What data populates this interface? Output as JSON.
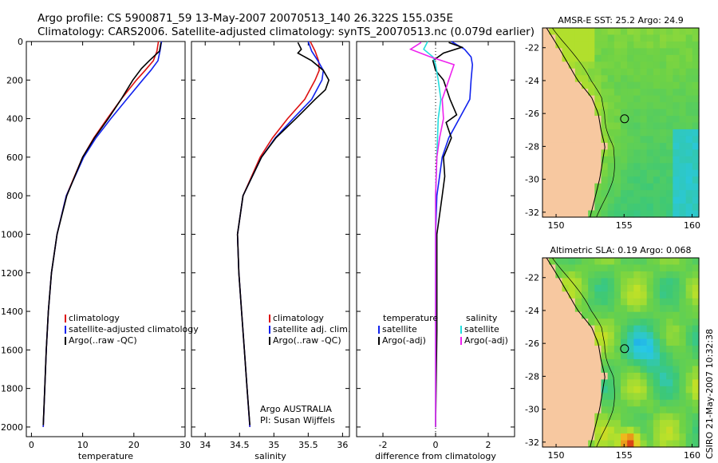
{
  "header": {
    "line1": "Argo profile: CS 5900871_59 13-May-2007 20070513_140 26.322S 155.035E",
    "line2": "Climatology: CARS2006. Satellite-adjusted climatology: synTS_20070513.nc (0.079d earlier)"
  },
  "credit": {
    "vertical": "CSIRO 21-May-2007 10:32:38",
    "argo_line1": "Argo AUSTRALIA",
    "argo_line2": "PI: Susan Wijffels"
  },
  "colors": {
    "climatology": "#dd1111",
    "satellite": "#1122ee",
    "argo": "#000000",
    "sal_satellite": "#22dddd",
    "sal_argo": "#ee22ee",
    "land": "#f7c8a0"
  },
  "chart_data": [
    {
      "type": "line",
      "xlabel": "temperature",
      "ylabel": "",
      "xlim": [
        -1,
        30
      ],
      "ylim": [
        2050,
        0
      ],
      "x_ticks": [
        0,
        10,
        20,
        30
      ],
      "y_ticks": [
        0,
        200,
        400,
        600,
        800,
        1000,
        1200,
        1400,
        1600,
        1800,
        2000
      ],
      "legend": [
        "climatology",
        "satellite-adjusted climatology",
        "Argo(..raw -QC)"
      ],
      "series": [
        {
          "name": "climatology",
          "color": "#dd1111",
          "depth": [
            0,
            50,
            100,
            150,
            200,
            300,
            400,
            500,
            600,
            800,
            1000,
            1200,
            1400,
            1600,
            1800,
            2000
          ],
          "values": [
            24.8,
            24.5,
            23.8,
            22.2,
            20.5,
            17.5,
            14.8,
            12.2,
            10.0,
            6.8,
            5.0,
            3.9,
            3.3,
            2.9,
            2.6,
            2.3
          ]
        },
        {
          "name": "satellite-adjusted climatology",
          "color": "#1122ee",
          "depth": [
            0,
            50,
            100,
            150,
            200,
            300,
            400,
            500,
            600,
            800,
            1000,
            1200,
            1400,
            1600,
            1800,
            2000
          ],
          "values": [
            25.4,
            25.1,
            24.7,
            23.3,
            21.7,
            18.6,
            15.5,
            12.6,
            10.2,
            6.8,
            5.0,
            3.9,
            3.3,
            2.9,
            2.6,
            2.3
          ]
        },
        {
          "name": "Argo(..raw -QC)",
          "color": "#000000",
          "depth": [
            5,
            50,
            100,
            140,
            200,
            300,
            400,
            500,
            600,
            800,
            1000,
            1200,
            1400,
            1600,
            1800,
            1990
          ],
          "values": [
            25.3,
            25.0,
            23.0,
            21.5,
            19.8,
            17.5,
            15.0,
            12.3,
            10.0,
            6.9,
            5.0,
            3.9,
            3.3,
            2.9,
            2.6,
            2.3
          ]
        }
      ]
    },
    {
      "type": "line",
      "xlabel": "salinity",
      "ylabel": "",
      "xlim": [
        33.8,
        36.1
      ],
      "ylim": [
        2050,
        0
      ],
      "x_ticks": [
        34,
        34.5,
        35,
        35.5,
        36
      ],
      "legend": [
        "climatology",
        "satellite adj. clim.",
        "Argo(..raw -QC)"
      ],
      "series": [
        {
          "name": "climatology",
          "color": "#dd1111",
          "depth": [
            0,
            50,
            100,
            150,
            200,
            300,
            400,
            500,
            600,
            800,
            1000,
            1200,
            1400,
            1600,
            1800,
            2000
          ],
          "values": [
            35.53,
            35.6,
            35.65,
            35.66,
            35.6,
            35.45,
            35.2,
            34.98,
            34.8,
            34.55,
            34.47,
            34.49,
            34.53,
            34.57,
            34.61,
            34.65
          ]
        },
        {
          "name": "satellite adj. clim.",
          "color": "#1122ee",
          "depth": [
            0,
            50,
            100,
            150,
            200,
            300,
            400,
            500,
            600,
            800,
            1000,
            1200,
            1400,
            1600,
            1800,
            2000
          ],
          "values": [
            35.5,
            35.55,
            35.64,
            35.72,
            35.7,
            35.55,
            35.28,
            35.02,
            34.82,
            34.55,
            34.47,
            34.49,
            34.53,
            34.57,
            34.61,
            34.65
          ]
        },
        {
          "name": "Argo(..raw -QC)",
          "color": "#000000",
          "depth": [
            5,
            40,
            60,
            100,
            150,
            200,
            250,
            300,
            400,
            500,
            600,
            800,
            1000,
            1200,
            1400,
            1600,
            1800,
            1990
          ],
          "values": [
            35.35,
            35.4,
            35.35,
            35.55,
            35.72,
            35.8,
            35.75,
            35.6,
            35.32,
            35.03,
            34.82,
            34.55,
            34.47,
            34.49,
            34.53,
            34.57,
            34.61,
            34.65
          ]
        }
      ]
    },
    {
      "type": "line",
      "xlabel": "difference from climatology",
      "ylabel": "",
      "xlim": [
        -3,
        3
      ],
      "ylim": [
        2050,
        0
      ],
      "x_ticks": [
        -2,
        0,
        2
      ],
      "legend_titles": [
        "temperature",
        "salinity"
      ],
      "legend": [
        "satellite",
        "Argo(-adj)",
        "satellite",
        "Argo(-adj)"
      ],
      "series": [
        {
          "name": "satellite",
          "group": "temperature",
          "color": "#1122ee",
          "depth": [
            0,
            40,
            80,
            120,
            200,
            300,
            400,
            500,
            600,
            800,
            1000,
            2000
          ],
          "values": [
            0.6,
            1.1,
            1.35,
            1.4,
            1.35,
            1.3,
            0.9,
            0.5,
            0.25,
            0.05,
            0.0,
            0.0
          ]
        },
        {
          "name": "Argo(-adj)",
          "group": "temperature",
          "color": "#000000",
          "depth": [
            5,
            30,
            60,
            100,
            150,
            200,
            300,
            380,
            420,
            500,
            600,
            700,
            800,
            900,
            1000,
            1200,
            1500,
            2000
          ],
          "values": [
            0.5,
            1.0,
            0.3,
            -0.1,
            0.0,
            0.3,
            0.55,
            0.8,
            0.4,
            0.6,
            0.3,
            0.35,
            0.25,
            0.15,
            0.05,
            0.05,
            0.05,
            0.0
          ]
        },
        {
          "name": "satellite",
          "group": "salinity",
          "color": "#22dddd",
          "depth": [
            0,
            40,
            80,
            120,
            200,
            300,
            400,
            600,
            800,
            1000,
            2000
          ],
          "values": [
            -0.3,
            -0.45,
            -0.1,
            0.0,
            0.1,
            0.2,
            0.1,
            0.05,
            0.0,
            0.0,
            0.0
          ]
        },
        {
          "name": "Argo(-adj)",
          "group": "salinity",
          "color": "#ee22ee",
          "depth": [
            5,
            40,
            80,
            120,
            200,
            300,
            400,
            500,
            600,
            800,
            1000,
            2000
          ],
          "values": [
            -0.55,
            -0.95,
            -0.2,
            0.7,
            0.5,
            0.25,
            0.3,
            0.15,
            0.05,
            0.0,
            0.0,
            0.0
          ]
        }
      ]
    },
    {
      "type": "heatmap",
      "title": "AMSR-E SST: 25.2 Argo: 24.9",
      "xlim": [
        149,
        160.5
      ],
      "ylim": [
        -32.3,
        -20.8
      ],
      "x_ticks": [
        150,
        155,
        160
      ],
      "y_ticks": [
        -22,
        -24,
        -26,
        -28,
        -30,
        -32
      ],
      "marker": {
        "lon": 155.035,
        "lat": -26.322
      }
    },
    {
      "type": "heatmap",
      "title": "Altimetric SLA: 0.19 Argo: 0.068",
      "xlim": [
        149,
        160.5
      ],
      "ylim": [
        -32.3,
        -20.8
      ],
      "x_ticks": [
        150,
        155,
        160
      ],
      "y_ticks": [
        -22,
        -24,
        -26,
        -28,
        -30,
        -32
      ],
      "marker": {
        "lon": 155.035,
        "lat": -26.322
      }
    }
  ]
}
